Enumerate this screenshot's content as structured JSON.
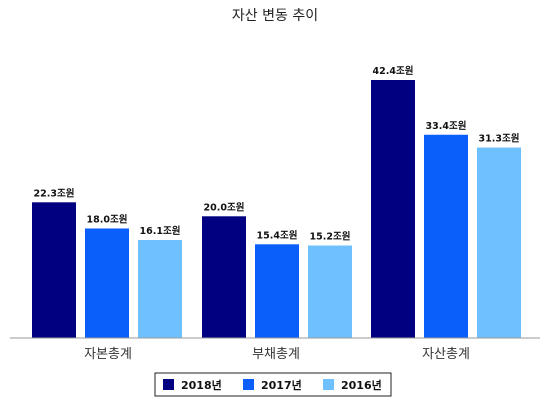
{
  "chart_data": {
    "type": "bar",
    "title": "자산 변동 추이",
    "categories": [
      "자본총계",
      "부채총계",
      "자산총계"
    ],
    "series": [
      {
        "name": "2018년",
        "color": "#000080",
        "values": [
          22.3,
          20.0,
          42.4
        ],
        "labels": [
          "22.3조원",
          "20.0조원",
          "42.4조원"
        ]
      },
      {
        "name": "2017년",
        "color": "#0A5EFA",
        "values": [
          18.0,
          15.4,
          33.4
        ],
        "labels": [
          "18.0조원",
          "15.4조원",
          "33.4조원"
        ]
      },
      {
        "name": "2016년",
        "color": "#6EC0FF",
        "values": [
          16.1,
          15.2,
          31.3
        ],
        "labels": [
          "16.1조원",
          "15.2조원",
          "31.3조원"
        ]
      }
    ],
    "ylim": [
      0,
      50
    ],
    "grid": false,
    "legend_position": "bottom"
  }
}
